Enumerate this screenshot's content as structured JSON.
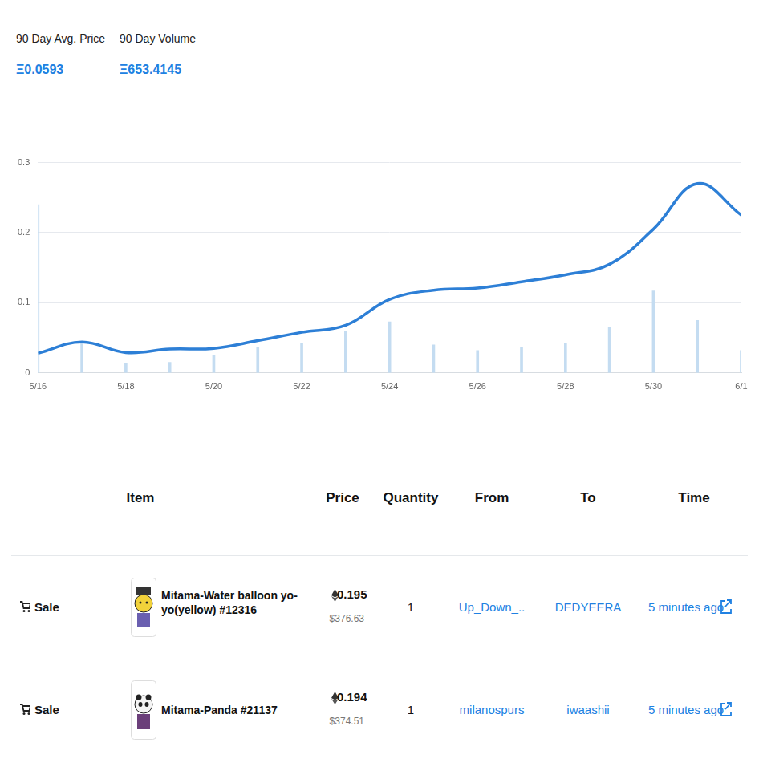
{
  "stats": [
    {
      "label": "90 Day Avg. Price",
      "value": "Ξ0.0593"
    },
    {
      "label": "90 Day Volume",
      "value": "Ξ653.4145"
    }
  ],
  "chart_data": {
    "type": "line",
    "categories": [
      "5/16",
      null,
      "5/18",
      null,
      "5/20",
      null,
      "5/22",
      null,
      "5/24",
      null,
      "5/26",
      null,
      "5/28",
      null,
      "5/30",
      null,
      "6/1"
    ],
    "series": [
      {
        "type": "line",
        "color": "#2d7fd6",
        "values": [
          0.028,
          0.044,
          0.029,
          0.034,
          0.035,
          0.046,
          0.058,
          0.068,
          0.105,
          0.118,
          0.121,
          0.13,
          0.14,
          0.155,
          0.205,
          0.27,
          0.225
        ]
      },
      {
        "type": "bar",
        "color": "#c4dcf1",
        "values": [
          0.24,
          0.042,
          0.013,
          0.015,
          0.025,
          0.037,
          0.043,
          0.06,
          0.073,
          0.04,
          0.032,
          0.037,
          0.043,
          0.065,
          0.117,
          0.075,
          0.032
        ]
      }
    ],
    "ylim": [
      0,
      0.3
    ],
    "yticks": [
      0,
      0.1,
      0.2,
      0.3
    ],
    "grid": true
  },
  "table": {
    "columns": [
      "Item",
      "Price",
      "Quantity",
      "From",
      "To",
      "Time"
    ],
    "rows": [
      {
        "event": "Sale",
        "item": "Mitama-Water balloon yo-yo(yellow) #12316",
        "price": "0.195",
        "price_usd": "$376.63",
        "quantity": "1",
        "from": "Up_Down_..",
        "to": "DEDYEERA",
        "time": "5 minutes ago"
      },
      {
        "event": "Sale",
        "item": "Mitama-Panda #21137",
        "price": "0.194",
        "price_usd": "$374.51",
        "quantity": "1",
        "from": "milanospurs",
        "to": "iwaashii",
        "time": "5 minutes ago"
      }
    ]
  }
}
